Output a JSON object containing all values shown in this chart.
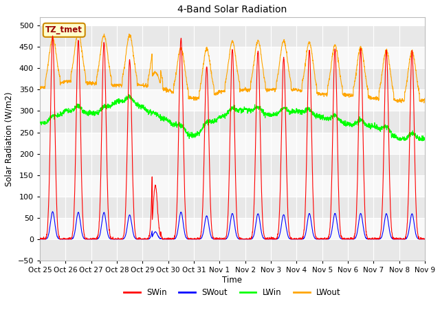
{
  "title": "4-Band Solar Radiation",
  "xlabel": "Time",
  "ylabel": "Solar Radiation (W/m2)",
  "ylim": [
    -50,
    520
  ],
  "yticks": [
    -50,
    0,
    50,
    100,
    150,
    200,
    250,
    300,
    350,
    400,
    450,
    500
  ],
  "x_tick_labels": [
    "Oct 25",
    "Oct 26",
    "Oct 27",
    "Oct 28",
    "Oct 29",
    "Oct 30",
    "Oct 31",
    "Nov 1",
    "Nov 2",
    "Nov 3",
    "Nov 4",
    "Nov 5",
    "Nov 6",
    "Nov 7",
    "Nov 8",
    "Nov 9"
  ],
  "annotation_text": "TZ_tmet",
  "annotation_bg": "#ffffcc",
  "annotation_border": "#cc8800",
  "colors": {
    "SWin": "#ff0000",
    "SWout": "#0000ff",
    "LWin": "#00ff00",
    "LWout": "#ffa500"
  },
  "background_color": "#ffffff",
  "plot_bg": "#ffffff",
  "grid_color": "#d0d0d0",
  "band_colors": [
    "#e8e8e8",
    "#f8f8f8"
  ],
  "num_days": 15,
  "figsize": [
    6.4,
    4.8
  ],
  "dpi": 100
}
